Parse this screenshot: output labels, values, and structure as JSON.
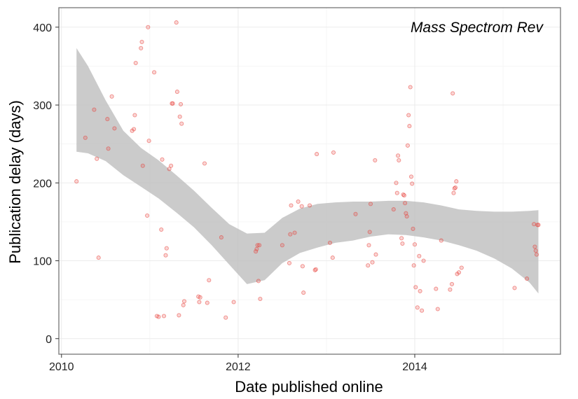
{
  "chart_data": {
    "type": "scatter",
    "annotation": "Mass Spectrom Rev",
    "xlabel": "Date published online",
    "ylabel": "Publication delay (days)",
    "xlim": [
      2009.97,
      2015.65
    ],
    "ylim": [
      -20,
      425
    ],
    "x_ticks": [
      2010,
      2012,
      2014
    ],
    "y_ticks": [
      0,
      100,
      200,
      300,
      400
    ],
    "grid": true,
    "legend": "none",
    "colors": {
      "points": "#e8413a",
      "band": "#bdbdbd",
      "grid": "#ebebeb",
      "border": "#7f7f7f"
    },
    "series": [
      {
        "values": [
          [
            2010.17,
            202
          ],
          [
            2010.27,
            258
          ],
          [
            2010.37,
            294
          ],
          [
            2010.4,
            231
          ],
          [
            2010.42,
            104
          ],
          [
            2010.52,
            282
          ],
          [
            2010.53,
            244
          ],
          [
            2010.57,
            311
          ],
          [
            2010.6,
            270
          ],
          [
            2010.8,
            267
          ],
          [
            2010.82,
            269
          ],
          [
            2010.83,
            287
          ],
          [
            2010.84,
            354
          ],
          [
            2010.9,
            373
          ],
          [
            2010.91,
            381
          ],
          [
            2010.92,
            222
          ],
          [
            2010.97,
            158
          ],
          [
            2010.98,
            400
          ],
          [
            2010.99,
            254
          ],
          [
            2011.05,
            342
          ],
          [
            2011.08,
            29
          ],
          [
            2011.1,
            28
          ],
          [
            2011.13,
            140
          ],
          [
            2011.14,
            230
          ],
          [
            2011.16,
            29
          ],
          [
            2011.18,
            107
          ],
          [
            2011.19,
            116
          ],
          [
            2011.22,
            218
          ],
          [
            2011.24,
            222
          ],
          [
            2011.25,
            302
          ],
          [
            2011.26,
            302
          ],
          [
            2011.3,
            406
          ],
          [
            2011.31,
            317
          ],
          [
            2011.33,
            30
          ],
          [
            2011.34,
            285
          ],
          [
            2011.35,
            301
          ],
          [
            2011.36,
            276
          ],
          [
            2011.38,
            43
          ],
          [
            2011.39,
            48
          ],
          [
            2011.55,
            54
          ],
          [
            2011.56,
            47
          ],
          [
            2011.57,
            53
          ],
          [
            2011.62,
            225
          ],
          [
            2011.65,
            46
          ],
          [
            2011.67,
            75
          ],
          [
            2011.81,
            130
          ],
          [
            2011.86,
            27
          ],
          [
            2011.95,
            47
          ],
          [
            2012.2,
            112
          ],
          [
            2012.21,
            115
          ],
          [
            2012.22,
            120
          ],
          [
            2012.23,
            74
          ],
          [
            2012.24,
            120
          ],
          [
            2012.25,
            51
          ],
          [
            2012.5,
            120
          ],
          [
            2012.58,
            97
          ],
          [
            2012.59,
            134
          ],
          [
            2012.6,
            171
          ],
          [
            2012.64,
            136
          ],
          [
            2012.68,
            176
          ],
          [
            2012.72,
            170
          ],
          [
            2012.73,
            93
          ],
          [
            2012.74,
            59
          ],
          [
            2012.81,
            171
          ],
          [
            2012.87,
            88
          ],
          [
            2012.88,
            89
          ],
          [
            2012.89,
            237
          ],
          [
            2013.04,
            123
          ],
          [
            2013.07,
            104
          ],
          [
            2013.08,
            239
          ],
          [
            2013.33,
            160
          ],
          [
            2013.47,
            94
          ],
          [
            2013.48,
            120
          ],
          [
            2013.49,
            137
          ],
          [
            2013.5,
            173
          ],
          [
            2013.52,
            98
          ],
          [
            2013.55,
            229
          ],
          [
            2013.56,
            108
          ],
          [
            2013.76,
            166
          ],
          [
            2013.79,
            200
          ],
          [
            2013.8,
            187
          ],
          [
            2013.81,
            235
          ],
          [
            2013.82,
            229
          ],
          [
            2013.85,
            129
          ],
          [
            2013.86,
            122
          ],
          [
            2013.87,
            185
          ],
          [
            2013.88,
            184
          ],
          [
            2013.89,
            174
          ],
          [
            2013.9,
            161
          ],
          [
            2013.91,
            157
          ],
          [
            2013.92,
            248
          ],
          [
            2013.93,
            287
          ],
          [
            2013.94,
            273
          ],
          [
            2013.95,
            323
          ],
          [
            2013.96,
            208
          ],
          [
            2013.97,
            199
          ],
          [
            2013.98,
            141
          ],
          [
            2013.99,
            94
          ],
          [
            2014.0,
            121
          ],
          [
            2014.01,
            66
          ],
          [
            2014.03,
            40
          ],
          [
            2014.05,
            106
          ],
          [
            2014.06,
            61
          ],
          [
            2014.08,
            36
          ],
          [
            2014.1,
            100
          ],
          [
            2014.24,
            64
          ],
          [
            2014.26,
            38
          ],
          [
            2014.3,
            126
          ],
          [
            2014.4,
            63
          ],
          [
            2014.42,
            70
          ],
          [
            2014.43,
            315
          ],
          [
            2014.44,
            187
          ],
          [
            2014.45,
            193
          ],
          [
            2014.46,
            194
          ],
          [
            2014.47,
            202
          ],
          [
            2014.48,
            83
          ],
          [
            2014.5,
            85
          ],
          [
            2014.53,
            91
          ],
          [
            2015.13,
            65
          ],
          [
            2015.27,
            77
          ],
          [
            2015.35,
            147
          ],
          [
            2015.36,
            118
          ],
          [
            2015.37,
            113
          ],
          [
            2015.38,
            108
          ],
          [
            2015.39,
            146
          ],
          [
            2015.4,
            146
          ]
        ]
      }
    ],
    "smooth_band": {
      "x": [
        2010.17,
        2010.3,
        2010.5,
        2010.7,
        2010.9,
        2011.1,
        2011.3,
        2011.5,
        2011.7,
        2011.9,
        2012.1,
        2012.3,
        2012.5,
        2012.7,
        2012.9,
        2013.1,
        2013.3,
        2013.5,
        2013.7,
        2013.9,
        2014.1,
        2014.3,
        2014.5,
        2014.7,
        2014.9,
        2015.1,
        2015.3,
        2015.4
      ],
      "upper": [
        373,
        350,
        306,
        267,
        245,
        229,
        210,
        190,
        168,
        147,
        135,
        136,
        155,
        167,
        173,
        175,
        176,
        176,
        177,
        177,
        175,
        171,
        166,
        164,
        163,
        163,
        164,
        165
      ],
      "lower": [
        240,
        238,
        228,
        210,
        195,
        180,
        162,
        143,
        120,
        95,
        70,
        75,
        97,
        110,
        117,
        123,
        126,
        131,
        134,
        133,
        130,
        126,
        120,
        113,
        103,
        90,
        72,
        58
      ]
    }
  }
}
